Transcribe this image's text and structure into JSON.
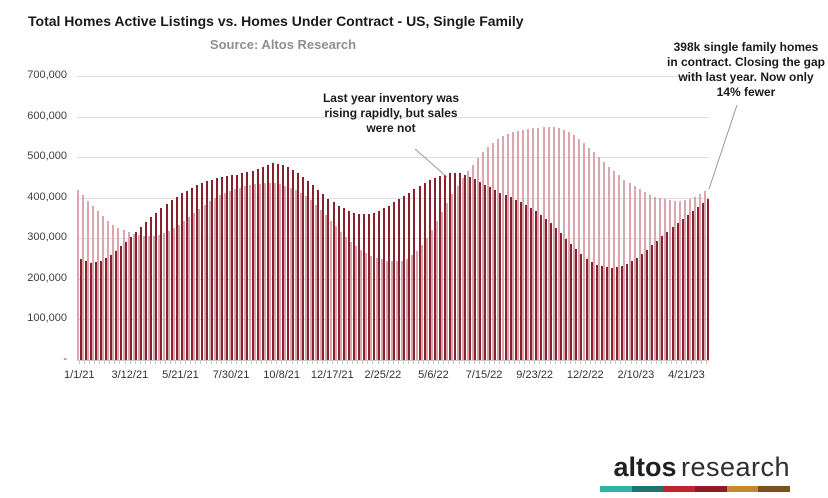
{
  "chart_data": {
    "type": "bar",
    "title": "Total Homes Active Listings vs. Homes Under Contract - US, Single Family",
    "subtitle": "Source: Altos Research",
    "values_unit": "homes, thousands",
    "ylim_thousands": [
      0,
      700
    ],
    "grid": true,
    "legend": "none",
    "y_tick_labels": [
      "700,000",
      "600,000",
      "500,000",
      "400,000",
      "300,000",
      "200,000",
      "100,000",
      "-"
    ],
    "x_tick_labels": [
      "1/1/21",
      "3/12/21",
      "5/21/21",
      "7/30/21",
      "10/8/21",
      "12/17/21",
      "2/25/22",
      "5/6/22",
      "7/15/22",
      "9/23/22",
      "12/2/22",
      "2/10/23",
      "4/21/23"
    ],
    "weeks_per_label": 10,
    "series": [
      {
        "name": "Total Homes Active Listings",
        "color": "#d9a7ad",
        "values": [
          420,
          406,
          393,
          380,
          367,
          355,
          344,
          334,
          326,
          320,
          315,
          311,
          308,
          306,
          305,
          306,
          308,
          312,
          318,
          325,
          333,
          342,
          352,
          362,
          372,
          382,
          391,
          399,
          406,
          412,
          417,
          421,
          425,
          428,
          431,
          433,
          435,
          436,
          437,
          436,
          434,
          430,
          425,
          419,
          412,
          404,
          394,
          383,
          371,
          358,
          344,
          330,
          316,
          303,
          291,
          280,
          271,
          263,
          257,
          252,
          248,
          245,
          243,
          243,
          245,
          250,
          258,
          269,
          283,
          300,
          320,
          342,
          365,
          388,
          410,
          430,
          448,
          465,
          481,
          497,
          512,
          525,
          536,
          545,
          552,
          558,
          562,
          565,
          568,
          570,
          572,
          573,
          574,
          575,
          574,
          572,
          568,
          562,
          554,
          545,
          535,
          524,
          513,
          501,
          489,
          477,
          466,
          455,
          445,
          436,
          428,
          421,
          414,
          408,
          403,
          399,
          396,
          394,
          393,
          393,
          394,
          397,
          402,
          409,
          418
        ]
      },
      {
        "name": "Homes Under Contract",
        "color": "#87222e",
        "values": [
          250,
          244,
          240,
          241,
          245,
          251,
          259,
          269,
          280,
          292,
          304,
          316,
          328,
          340,
          352,
          363,
          374,
          384,
          394,
          403,
          411,
          418,
          425,
          431,
          436,
          441,
          445,
          448,
          451,
          453,
          455,
          457,
          460,
          463,
          467,
          472,
          477,
          481,
          485,
          484,
          481,
          476,
          469,
          461,
          452,
          442,
          431,
          420,
          409,
          398,
          389,
          381,
          374,
          368,
          363,
          360,
          359,
          360,
          363,
          368,
          374,
          381,
          389,
          397,
          405,
          413,
          421,
          429,
          436,
          443,
          448,
          453,
          457,
          460,
          461,
          460,
          457,
          452,
          446,
          439,
          432,
          426,
          420,
          413,
          407,
          401,
          395,
          389,
          382,
          375,
          367,
          358,
          348,
          337,
          325,
          312,
          299,
          286,
          273,
          261,
          250,
          241,
          235,
          231,
          229,
          228,
          229,
          232,
          237,
          243,
          251,
          261,
          272,
          283,
          294,
          305,
          316,
          327,
          337,
          347,
          357,
          368,
          378,
          388,
          398
        ]
      }
    ],
    "annotations": [
      {
        "text": "Last year inventory was\nrising rapidly, but sales\nwere not"
      },
      {
        "text": "398k single family homes\nin contract. Closing the gap\nwith last year. Now only\n14% fewer"
      }
    ]
  },
  "logo": {
    "brand_bold": "altos",
    "brand_light": "research",
    "stripe_colors": [
      "#2fb3a7",
      "#1e756d",
      "#c1242e",
      "#8b1c28",
      "#c8862f",
      "#7b521d"
    ]
  }
}
